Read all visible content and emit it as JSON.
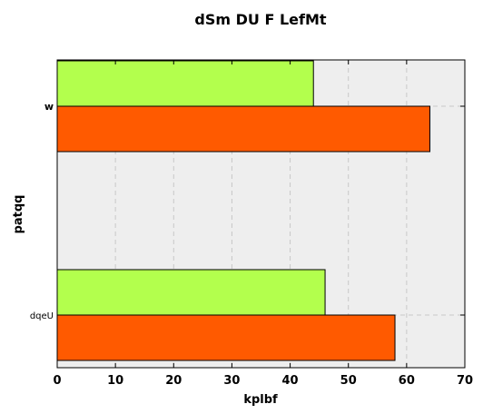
{
  "chart_data": {
    "type": "bar",
    "orientation": "horizontal",
    "title": "dSm DU F LefMt",
    "xlabel": "kplbf",
    "ylabel": "patqq",
    "categories": [
      "dqeU",
      "w"
    ],
    "series": [
      {
        "values": [
          58,
          64
        ],
        "color": "#ff5a00"
      },
      {
        "values": [
          46,
          44
        ],
        "color": "#b3ff4d"
      }
    ],
    "xlim": [
      0,
      70
    ],
    "xticks": [
      0,
      10,
      20,
      30,
      40,
      50,
      60,
      70
    ],
    "grid": true,
    "legend": "none"
  },
  "colors": {
    "plot_background": "#eeeeee",
    "grid": "#c8c8c8"
  }
}
